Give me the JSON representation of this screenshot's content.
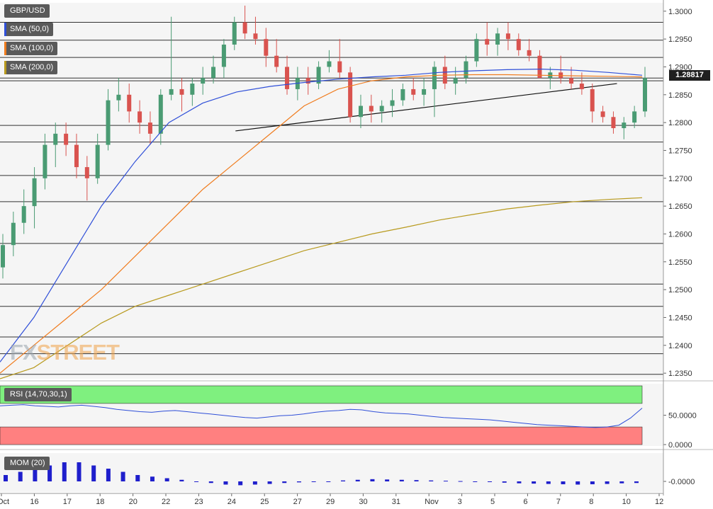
{
  "chart_data": [
    {
      "type": "candlestick",
      "symbol": "GBP/USD",
      "ylim": [
        1.234,
        1.3015
      ],
      "y_ticks": [
        "1.3000",
        "1.2950",
        "1.2900",
        "1.2850",
        "1.2800",
        "1.2750",
        "1.2700",
        "1.2650",
        "1.2600",
        "1.2550",
        "1.2500",
        "1.2450",
        "1.2400",
        "1.2350"
      ],
      "x_ticks": [
        "Oct",
        "16",
        "17",
        "18",
        "20",
        "22",
        "23",
        "24",
        "25",
        "27",
        "29",
        "30",
        "31",
        "Nov",
        "3",
        "5",
        "6",
        "7",
        "8",
        "10",
        "12"
      ],
      "last_price": "1.28817",
      "horizontal_levels": [
        1.298,
        1.2948,
        1.2917,
        1.288,
        1.2875,
        1.2795,
        1.2765,
        1.2705,
        1.2658,
        1.2583,
        1.251,
        1.247,
        1.2415,
        1.2385,
        1.2348
      ],
      "trendline": {
        "from": [
          1.2785,
          0.355
        ],
        "to": [
          1.287,
          0.93
        ]
      },
      "ohlc": [
        [
          1.254,
          1.26,
          1.252,
          1.258
        ],
        [
          1.258,
          1.264,
          1.256,
          1.262
        ],
        [
          1.262,
          1.268,
          1.26,
          1.265
        ],
        [
          1.265,
          1.272,
          1.261,
          1.27
        ],
        [
          1.27,
          1.278,
          1.268,
          1.276
        ],
        [
          1.276,
          1.28,
          1.272,
          1.278
        ],
        [
          1.278,
          1.28,
          1.274,
          1.276
        ],
        [
          1.276,
          1.278,
          1.27,
          1.272
        ],
        [
          1.272,
          1.274,
          1.266,
          1.27
        ],
        [
          1.27,
          1.278,
          1.269,
          1.276
        ],
        [
          1.276,
          1.286,
          1.275,
          1.284
        ],
        [
          1.284,
          1.288,
          1.282,
          1.285
        ],
        [
          1.285,
          1.287,
          1.28,
          1.282
        ],
        [
          1.282,
          1.284,
          1.278,
          1.28
        ],
        [
          1.28,
          1.282,
          1.276,
          1.278
        ],
        [
          1.278,
          1.286,
          1.276,
          1.285
        ],
        [
          1.285,
          1.299,
          1.284,
          1.286
        ],
        [
          1.286,
          1.288,
          1.282,
          1.285
        ],
        [
          1.285,
          1.288,
          1.283,
          1.287
        ],
        [
          1.287,
          1.29,
          1.285,
          1.288
        ],
        [
          1.288,
          1.292,
          1.287,
          1.29
        ],
        [
          1.29,
          1.295,
          1.288,
          1.294
        ],
        [
          1.294,
          1.299,
          1.293,
          1.298
        ],
        [
          1.298,
          1.301,
          1.295,
          1.296
        ],
        [
          1.296,
          1.299,
          1.294,
          1.295
        ],
        [
          1.295,
          1.297,
          1.29,
          1.292
        ],
        [
          1.292,
          1.295,
          1.289,
          1.29
        ],
        [
          1.29,
          1.292,
          1.285,
          1.286
        ],
        [
          1.286,
          1.29,
          1.284,
          1.288
        ],
        [
          1.288,
          1.29,
          1.285,
          1.287
        ],
        [
          1.287,
          1.291,
          1.286,
          1.29
        ],
        [
          1.29,
          1.293,
          1.289,
          1.291
        ],
        [
          1.291,
          1.295,
          1.288,
          1.289
        ],
        [
          1.289,
          1.29,
          1.28,
          1.281
        ],
        [
          1.281,
          1.285,
          1.279,
          1.283
        ],
        [
          1.283,
          1.285,
          1.28,
          1.282
        ],
        [
          1.282,
          1.284,
          1.28,
          1.283
        ],
        [
          1.283,
          1.286,
          1.281,
          1.284
        ],
        [
          1.284,
          1.287,
          1.283,
          1.286
        ],
        [
          1.286,
          1.288,
          1.284,
          1.285
        ],
        [
          1.285,
          1.288,
          1.283,
          1.286
        ],
        [
          1.286,
          1.291,
          1.281,
          1.29
        ],
        [
          1.29,
          1.292,
          1.286,
          1.287
        ],
        [
          1.287,
          1.29,
          1.285,
          1.288
        ],
        [
          1.288,
          1.292,
          1.287,
          1.291
        ],
        [
          1.291,
          1.296,
          1.29,
          1.295
        ],
        [
          1.295,
          1.298,
          1.292,
          1.294
        ],
        [
          1.294,
          1.297,
          1.292,
          1.296
        ],
        [
          1.296,
          1.298,
          1.293,
          1.295
        ],
        [
          1.295,
          1.296,
          1.292,
          1.293
        ],
        [
          1.293,
          1.295,
          1.291,
          1.292
        ],
        [
          1.292,
          1.293,
          1.288,
          1.288
        ],
        [
          1.288,
          1.29,
          1.286,
          1.289
        ],
        [
          1.289,
          1.292,
          1.287,
          1.288
        ],
        [
          1.288,
          1.29,
          1.286,
          1.287
        ],
        [
          1.287,
          1.289,
          1.285,
          1.286
        ],
        [
          1.286,
          1.287,
          1.28,
          1.282
        ],
        [
          1.282,
          1.283,
          1.28,
          1.281
        ],
        [
          1.281,
          1.282,
          1.278,
          1.279
        ],
        [
          1.279,
          1.281,
          1.277,
          1.28
        ],
        [
          1.28,
          1.283,
          1.279,
          1.282
        ],
        [
          1.282,
          1.29,
          1.281,
          1.288
        ]
      ],
      "sma_50": [
        1.237,
        1.245,
        1.255,
        1.265,
        1.273,
        1.28,
        1.2835,
        1.2855,
        1.2865,
        1.2872,
        1.2878,
        1.2882,
        1.2885,
        1.289,
        1.2893,
        1.2895,
        1.2896,
        1.2894,
        1.289,
        1.2885
      ],
      "sma_100": [
        1.235,
        1.24,
        1.245,
        1.25,
        1.256,
        1.262,
        1.268,
        1.273,
        1.278,
        1.283,
        1.286,
        1.2875,
        1.2882,
        1.2885,
        1.2886,
        1.2886,
        1.2885,
        1.2884,
        1.2883,
        1.2882
      ],
      "sma_200": [
        1.234,
        1.236,
        1.24,
        1.244,
        1.247,
        1.249,
        1.251,
        1.253,
        1.255,
        1.257,
        1.2585,
        1.26,
        1.2612,
        1.2625,
        1.2635,
        1.2645,
        1.2652,
        1.2658,
        1.2662,
        1.2665
      ]
    },
    {
      "type": "line",
      "indicator": "RSI",
      "ylim": [
        0,
        100
      ],
      "y_ticks": [
        "50.0000",
        "0.0000"
      ],
      "bands": {
        "overbought": 70,
        "oversold": 30
      },
      "values": [
        66,
        67,
        68,
        66,
        65,
        64,
        66,
        67,
        65,
        63,
        60,
        58,
        56,
        55,
        57,
        58,
        56,
        54,
        52,
        50,
        48,
        46,
        45,
        47,
        49,
        50,
        52,
        55,
        57,
        58,
        60,
        59,
        56,
        54,
        53,
        52,
        50,
        48,
        46,
        45,
        44,
        43,
        42,
        40,
        38,
        36,
        34,
        33,
        32,
        31,
        30,
        29,
        30,
        33,
        45,
        62
      ]
    },
    {
      "type": "bar",
      "indicator": "Momentum",
      "y_ticks": [
        "-0.0000"
      ],
      "values": [
        0.002,
        0.003,
        0.004,
        0.005,
        0.006,
        0.006,
        0.005,
        0.004,
        0.003,
        0.002,
        0.0015,
        0.001,
        0.0005,
        0,
        -0.0005,
        -0.001,
        -0.0012,
        -0.001,
        -0.0008,
        -0.0005,
        -0.0003,
        -0.0002,
        0,
        0.0003,
        0.0005,
        0.0007,
        0.0006,
        0.0005,
        0.0004,
        0.0003,
        0.0002,
        0.0001,
        0,
        -0.0002,
        -0.0004,
        -0.0006,
        -0.0007,
        -0.0008,
        -0.0009,
        -0.001,
        -0.0009,
        -0.0008,
        -0.0006,
        -0.0005
      ]
    }
  ],
  "legend": {
    "symbol": "GBP/USD",
    "sma50": "SMA (50,0)",
    "sma100": "SMA (100,0)",
    "sma200": "SMA (200,0)",
    "rsi": "RSI (14,70,30,1)",
    "mom": "MOM (20)"
  },
  "colors": {
    "bull": "#4a9b73",
    "bear": "#d9534f",
    "sma50": "#2f4fd8",
    "sma100": "#f07c1e",
    "sma200": "#b89a1e",
    "rsi_line": "#2f4fd8",
    "overbought": "#7ff07f",
    "oversold": "#ff8080",
    "mom": "#1f1fcc"
  },
  "watermark": {
    "a": "FX",
    "b": "STREET"
  }
}
